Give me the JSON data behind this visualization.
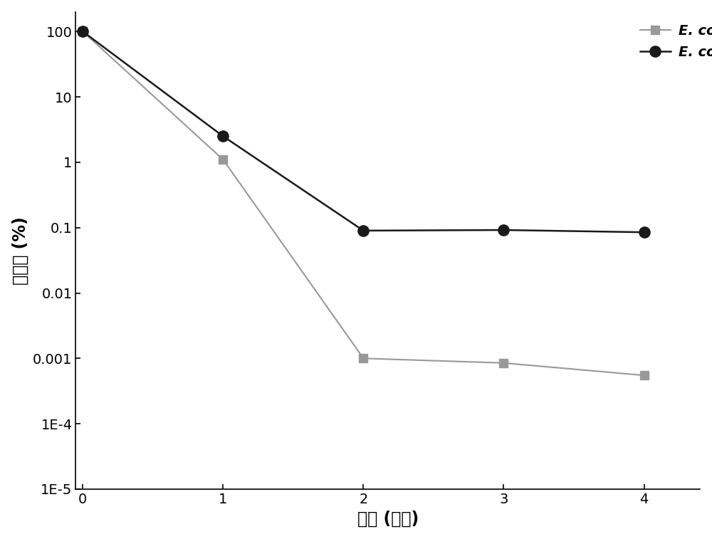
{
  "series1_x": [
    0,
    1,
    2,
    3,
    4
  ],
  "series1_y": [
    100,
    1.1,
    0.001,
    0.00085,
    0.00055
  ],
  "series2_x": [
    0,
    1,
    2,
    3,
    4
  ],
  "series2_y": [
    100,
    2.5,
    0.09,
    0.092,
    0.085
  ],
  "series1_color": "#999999",
  "series2_color": "#1a1a1a",
  "series1_marker": "s",
  "series2_marker": "o",
  "series1_markersize": 8,
  "series2_markersize": 11,
  "series1_linewidth": 1.5,
  "series2_linewidth": 1.8,
  "xlabel": "时间 (小时)",
  "ylabel": "存活率 (%)",
  "xlim": [
    -0.05,
    4.4
  ],
  "ylim": [
    1e-05,
    200
  ],
  "xticks": [
    0,
    1,
    2,
    3,
    4
  ],
  "background_color": "#ffffff",
  "xlabel_fontsize": 17,
  "ylabel_fontsize": 17,
  "tick_fontsize": 14,
  "legend_fontsize": 14
}
